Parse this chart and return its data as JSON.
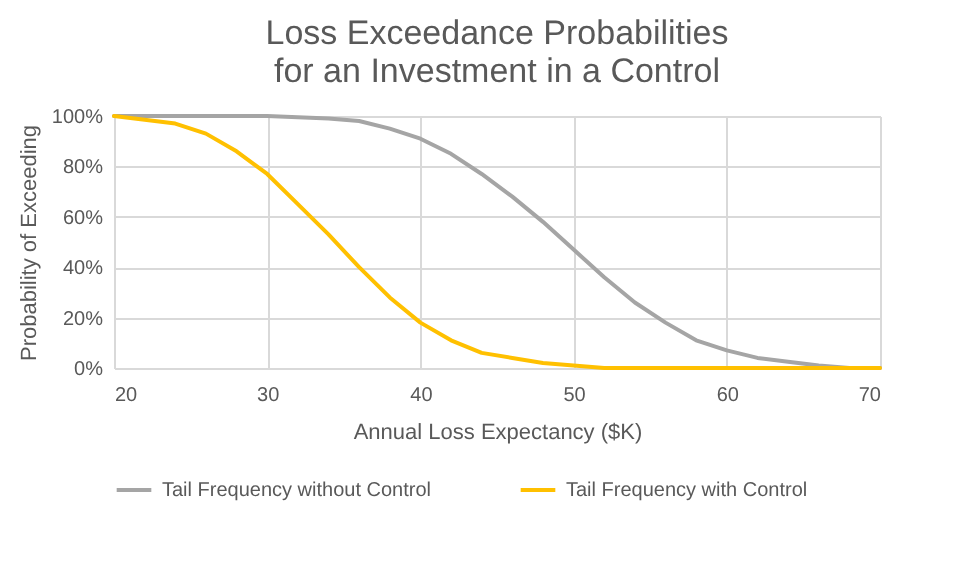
{
  "chart_data": {
    "type": "line",
    "title": "Loss Exceedance Probabilities for an Investment in a Control",
    "xlabel": "Annual Loss Expectancy ($K)",
    "ylabel": "Probability of Exceeding",
    "xlim": [
      20,
      70
    ],
    "xticks": [
      20,
      30,
      40,
      50,
      60,
      70
    ],
    "ylim": [
      0,
      100
    ],
    "yticks": [
      {
        "value": 0,
        "label": "0%"
      },
      {
        "value": 20,
        "label": "20%"
      },
      {
        "value": 40,
        "label": "40%"
      },
      {
        "value": 60,
        "label": "60%"
      },
      {
        "value": 80,
        "label": "80%"
      },
      {
        "value": 100,
        "label": "100%"
      }
    ],
    "grid": true,
    "legend": "bottom",
    "marker": "none",
    "line_style": "solid",
    "series": [
      {
        "name": "Tail Frequency without Control",
        "color": "#a5a5a5",
        "x": [
          20,
          30,
          32,
          34,
          36,
          38,
          40,
          42,
          44,
          46,
          48,
          50,
          52,
          54,
          56,
          58,
          60,
          62,
          64,
          66,
          68,
          70
        ],
        "values": [
          100,
          100,
          99.5,
          99,
          98,
          95,
          91,
          85,
          77,
          68,
          58,
          47,
          36,
          26,
          18,
          11,
          7,
          4,
          2.5,
          1,
          0,
          0
        ]
      },
      {
        "name": "Tail Frequency with Control",
        "color": "#ffc000",
        "x": [
          20,
          22,
          24,
          26,
          28,
          30,
          32,
          34,
          36,
          38,
          40,
          42,
          44,
          46,
          48,
          50,
          52,
          70
        ],
        "values": [
          100,
          98.5,
          97,
          93,
          86,
          77,
          65,
          53,
          40,
          28,
          18,
          11,
          6,
          4,
          2,
          1,
          0,
          0
        ]
      }
    ]
  }
}
